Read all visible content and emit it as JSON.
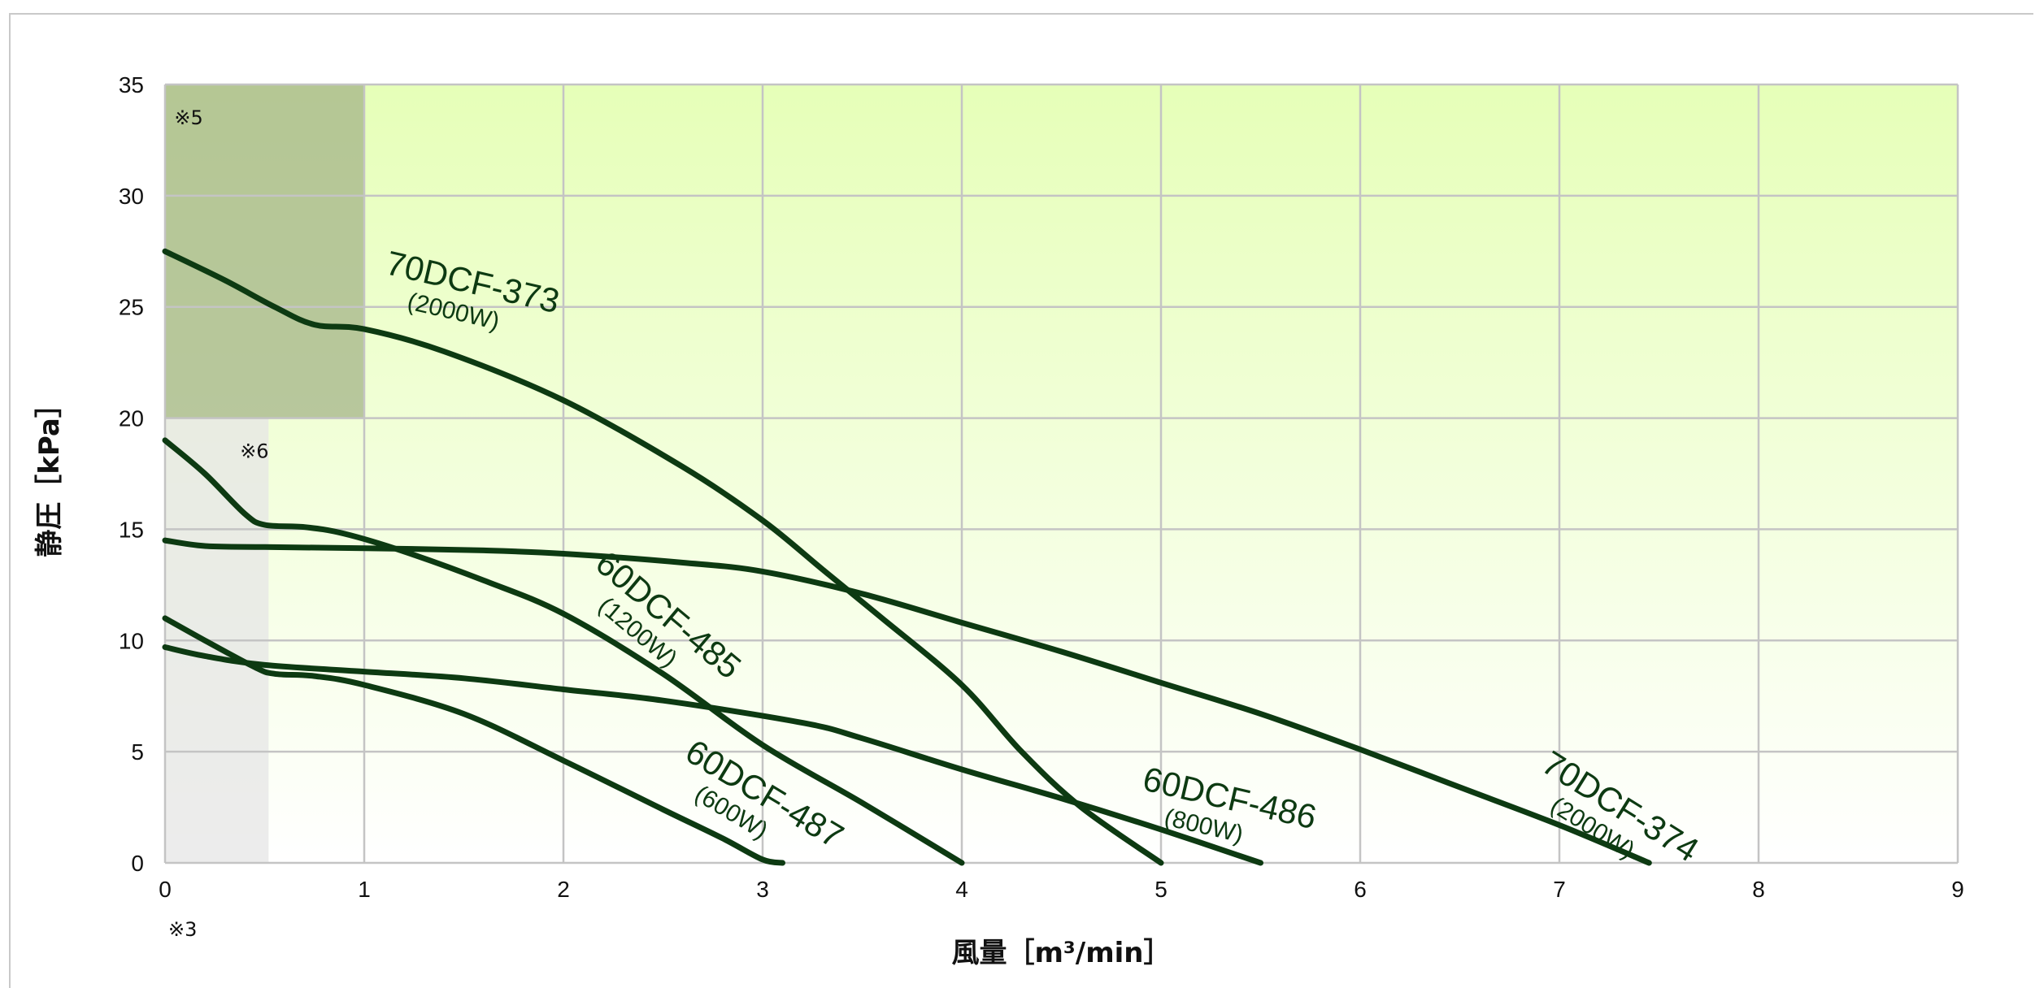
{
  "chart_data": {
    "type": "line",
    "xlabel": "風量［m³/min］",
    "ylabel": "静圧［kPa］",
    "xlim": [
      0,
      9
    ],
    "ylim": [
      0,
      35
    ],
    "xticks": [
      "0",
      "1",
      "2",
      "3",
      "4",
      "5",
      "6",
      "7",
      "8",
      "9"
    ],
    "yticks": [
      "0",
      "5",
      "10",
      "15",
      "20",
      "25",
      "30",
      "35"
    ],
    "grid": true,
    "background_gradient": [
      "#e6ffb8",
      "#ffffff"
    ],
    "notes": [
      {
        "text": "※5",
        "x": 0.03,
        "y": 33.5
      },
      {
        "text": "※6",
        "x": 0.36,
        "y": 18.5
      },
      {
        "text": "※3",
        "x": 0.0,
        "y": -3.0
      }
    ],
    "shaded_regions": [
      {
        "note": "※5",
        "x": [
          0,
          1
        ],
        "y": [
          20,
          35
        ],
        "color": "#a4b488"
      },
      {
        "note": "※6",
        "x": [
          0,
          0.52
        ],
        "y": [
          0,
          20
        ],
        "color": "#e6e6e6"
      }
    ],
    "series": [
      {
        "name": "70DCF-373",
        "power": "(2000W)",
        "color": "#0d3a12",
        "x": [
          0,
          0.3,
          0.55,
          0.75,
          1.0,
          1.4,
          2.0,
          2.6,
          3.0,
          3.3,
          3.6,
          4.0,
          4.3,
          4.6,
          5.0
        ],
        "y": [
          27.5,
          26.2,
          25.0,
          24.2,
          24.0,
          23.0,
          20.8,
          17.8,
          15.4,
          13.2,
          11.0,
          8.0,
          5.0,
          2.5,
          0.0
        ]
      },
      {
        "name": "70DCF-374",
        "power": "(2000W)",
        "color": "#0d3a12",
        "x": [
          0,
          0.2,
          0.5,
          1.0,
          1.6,
          2.0,
          2.6,
          3.0,
          3.5,
          4.0,
          4.5,
          5.0,
          5.5,
          6.0,
          6.5,
          7.0,
          7.45
        ],
        "y": [
          14.5,
          14.25,
          14.2,
          14.15,
          14.05,
          13.9,
          13.5,
          13.1,
          12.1,
          10.8,
          9.5,
          8.1,
          6.7,
          5.1,
          3.4,
          1.7,
          0.0
        ]
      },
      {
        "name": "60DCF-485",
        "power": "(1200W)",
        "color": "#0d3a12",
        "x": [
          0,
          0.2,
          0.4,
          0.5,
          0.7,
          0.9,
          1.2,
          1.6,
          2.0,
          2.5,
          3.0,
          3.5,
          4.0
        ],
        "y": [
          19.0,
          17.5,
          15.7,
          15.2,
          15.1,
          14.8,
          14.0,
          12.7,
          11.2,
          8.5,
          5.3,
          2.7,
          0.0
        ]
      },
      {
        "name": "60DCF-486",
        "power": "(800W)",
        "color": "#0d3a12",
        "x": [
          0,
          0.2,
          0.5,
          1.0,
          1.5,
          2.0,
          2.5,
          3.2,
          3.5,
          4.0,
          4.5,
          5.0,
          5.5
        ],
        "y": [
          9.7,
          9.3,
          8.9,
          8.6,
          8.3,
          7.8,
          7.3,
          6.3,
          5.6,
          4.2,
          2.9,
          1.5,
          0.0
        ]
      },
      {
        "name": "60DCF-487",
        "power": "(600W)",
        "color": "#0d3a12",
        "x": [
          0,
          0.2,
          0.45,
          0.55,
          0.75,
          1.0,
          1.5,
          2.0,
          2.5,
          2.8,
          3.0,
          3.1
        ],
        "y": [
          11.0,
          10.0,
          8.8,
          8.5,
          8.4,
          8.0,
          6.7,
          4.6,
          2.4,
          1.1,
          0.15,
          0.0
        ]
      }
    ],
    "curve_labels": [
      {
        "series": 0,
        "model_x": 1.1,
        "model_y": 26.5,
        "angle": 13
      },
      {
        "series": 1,
        "model_x": 6.9,
        "model_y": 4.2,
        "angle": 32
      },
      {
        "series": 2,
        "model_x": 2.15,
        "model_y": 13.3,
        "angle": 40
      },
      {
        "series": 3,
        "model_x": 4.9,
        "model_y": 3.3,
        "angle": 13
      },
      {
        "series": 4,
        "model_x": 2.6,
        "model_y": 4.7,
        "angle": 31
      }
    ]
  }
}
